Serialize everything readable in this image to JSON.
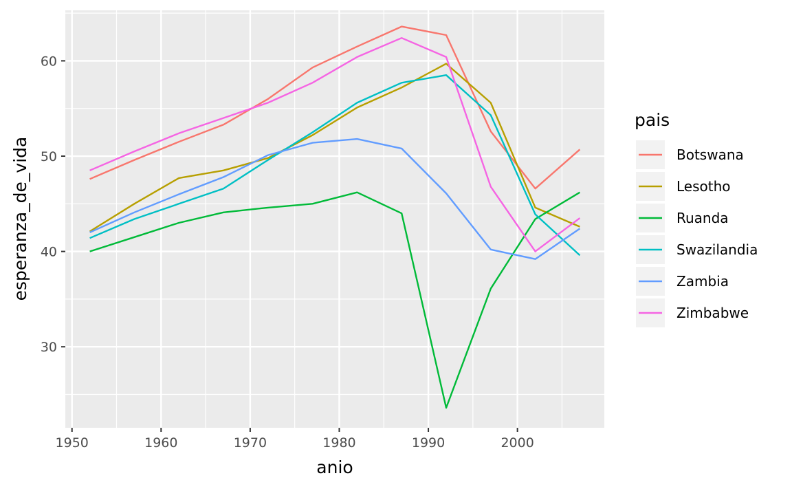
{
  "chart_data": {
    "type": "line",
    "xlabel": "anio",
    "ylabel": "esperanza_de_vida",
    "x": [
      1952,
      1957,
      1962,
      1967,
      1972,
      1977,
      1982,
      1987,
      1992,
      1997,
      2002,
      2007
    ],
    "xlim": [
      1949.25,
      2009.75
    ],
    "ylim": [
      21.5,
      65.3
    ],
    "xticks": [
      1950,
      1960,
      1970,
      1980,
      1990,
      2000
    ],
    "yticks": [
      30,
      40,
      50,
      60
    ],
    "grid": true,
    "legend": {
      "title": "pais",
      "position": "right"
    },
    "series": [
      {
        "name": "Botswana",
        "color": "#F8766D",
        "values": [
          47.6,
          49.6,
          51.5,
          53.3,
          56.0,
          59.3,
          61.5,
          63.6,
          62.7,
          52.6,
          46.6,
          50.7
        ]
      },
      {
        "name": "Lesotho",
        "color": "#B79F00",
        "values": [
          42.1,
          45.0,
          47.7,
          48.5,
          49.8,
          52.2,
          55.1,
          57.2,
          59.7,
          55.6,
          44.6,
          42.6
        ]
      },
      {
        "name": "Ruanda",
        "color": "#00BA38",
        "values": [
          40.0,
          41.5,
          43.0,
          44.1,
          44.6,
          45.0,
          46.2,
          44.0,
          23.6,
          36.1,
          43.4,
          46.2
        ]
      },
      {
        "name": "Swazilandia",
        "color": "#00BFC4",
        "values": [
          41.4,
          43.4,
          45.0,
          46.6,
          49.6,
          52.5,
          55.6,
          57.7,
          58.5,
          54.3,
          43.9,
          39.6
        ]
      },
      {
        "name": "Zambia",
        "color": "#619CFF",
        "values": [
          42.0,
          44.1,
          46.0,
          47.8,
          50.1,
          51.4,
          51.8,
          50.8,
          46.1,
          40.2,
          39.2,
          42.4
        ]
      },
      {
        "name": "Zimbabwe",
        "color": "#F564E3",
        "values": [
          48.5,
          50.5,
          52.4,
          54.0,
          55.6,
          57.7,
          60.4,
          62.4,
          60.4,
          46.8,
          40.0,
          43.5
        ]
      }
    ]
  }
}
